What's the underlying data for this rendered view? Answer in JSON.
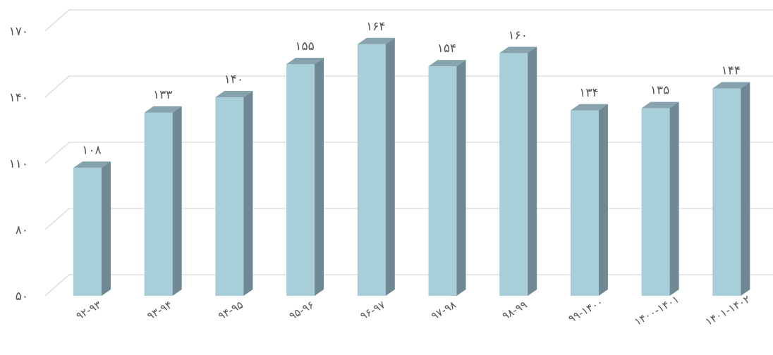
{
  "chart_data": {
    "type": "bar",
    "title": "",
    "xlabel": "",
    "ylabel": "",
    "ylim": [
      50,
      170
    ],
    "yticks": [
      50,
      80,
      110,
      140,
      170
    ],
    "ytick_labels": [
      "۵۰",
      "۸۰",
      "۱۱۰",
      "۱۴۰",
      "۱۷۰"
    ],
    "categories": [
      "۹۲-۹۳",
      "۹۳-۹۴",
      "۹۴-۹۵",
      "۹۵-۹۶",
      "۹۶-۹۷",
      "۹۷-۹۸",
      "۹۸-۹۹",
      "۹۹-۱۴۰۰",
      "۱۴۰۰-۱۴۰۱",
      "۱۴۰۱-۱۴۰۲"
    ],
    "values": [
      108,
      133,
      140,
      155,
      164,
      154,
      160,
      134,
      135,
      144
    ],
    "value_labels": [
      "۱۰۸",
      "۱۳۳",
      "۱۴۰",
      "۱۵۵",
      "۱۶۴",
      "۱۵۴",
      "۱۶۰",
      "۱۳۴",
      "۱۳۵",
      "۱۴۴"
    ],
    "grid": true,
    "legend": "none",
    "style": "3d-column",
    "colors": {
      "bar_front": "#a8ceda",
      "bar_side": "#6f8893",
      "bar_top": "#86a3ae",
      "grid": "#d9d9d9",
      "text": "#555555"
    }
  }
}
